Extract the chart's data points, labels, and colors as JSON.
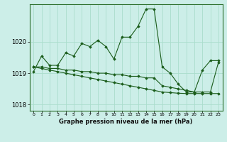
{
  "xlabel": "Graphe pression niveau de la mer (hPa)",
  "background_color": "#cceee8",
  "grid_color": "#aaddcc",
  "line_color": "#1a5c1a",
  "x_ticks": [
    0,
    1,
    2,
    3,
    4,
    5,
    6,
    7,
    8,
    9,
    10,
    11,
    12,
    13,
    14,
    15,
    16,
    17,
    18,
    19,
    20,
    21,
    22,
    23
  ],
  "ylim": [
    1017.8,
    1021.2
  ],
  "yticks": [
    1018,
    1019,
    1020
  ],
  "series1": [
    1019.05,
    1019.55,
    1019.25,
    1019.25,
    1019.65,
    1019.55,
    1019.95,
    1019.85,
    1020.05,
    1019.85,
    1019.45,
    1020.15,
    1020.15,
    1020.5,
    1021.05,
    1021.05,
    1019.2,
    1019.0,
    1018.65,
    1018.4,
    1018.4,
    1019.1,
    1019.4,
    1019.4
  ],
  "series2": [
    1019.2,
    1019.2,
    1019.15,
    1019.15,
    1019.1,
    1019.1,
    1019.05,
    1019.05,
    1019.0,
    1019.0,
    1018.95,
    1018.95,
    1018.9,
    1018.9,
    1018.85,
    1018.85,
    1018.6,
    1018.55,
    1018.5,
    1018.45,
    1018.4,
    1018.4,
    1018.4,
    1019.35
  ],
  "series3": [
    1019.2,
    1019.15,
    1019.1,
    1019.05,
    1019.0,
    1018.95,
    1018.9,
    1018.85,
    1018.8,
    1018.75,
    1018.7,
    1018.65,
    1018.6,
    1018.55,
    1018.5,
    1018.45,
    1018.4,
    1018.38,
    1018.36,
    1018.35,
    1018.35,
    1018.35,
    1018.35,
    1018.35
  ]
}
